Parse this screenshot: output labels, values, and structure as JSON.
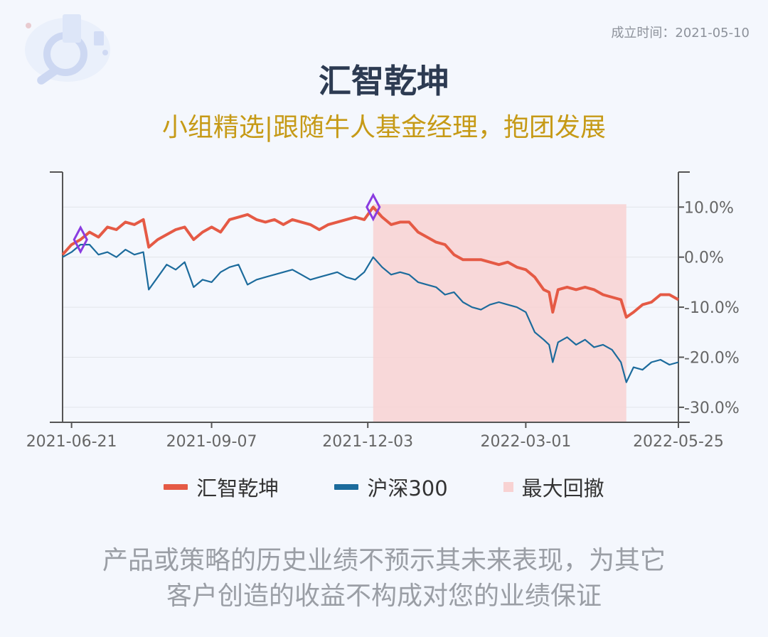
{
  "header": {
    "established_label": "成立时间：2021-05-10",
    "title": "汇智乾坤",
    "subtitle": "小组精选|跟随牛人基金经理，抱团发展"
  },
  "legend": {
    "items": [
      {
        "label": "汇智乾坤",
        "color": "#e55a45",
        "kind": "line"
      },
      {
        "label": "沪深300",
        "color": "#1c6b9c",
        "kind": "line"
      },
      {
        "label": "最大回撤",
        "color": "#f8d2d2",
        "kind": "box"
      }
    ]
  },
  "disclaimer": {
    "line1": "产品或策略的历史业绩不预示其未来表现，为其它",
    "line2": "客户创造的收益不构成对您的业绩保证"
  },
  "chart_data": {
    "type": "line",
    "title": "",
    "x_ticks": [
      "2021-06-21",
      "2021-09-07",
      "2021-12-03",
      "2022-03-01",
      "2022-05-25"
    ],
    "y_ticks": [
      "10.0%",
      "0.0%",
      "-10.0%",
      "-20.0%",
      "-30.0%"
    ],
    "y_tick_values": [
      10,
      0,
      -10,
      -20,
      -30
    ],
    "ylim": [
      -33,
      17
    ],
    "xlim": [
      "2021-06-16",
      "2022-05-25"
    ],
    "y_axis_side": "right",
    "grid": true,
    "series": [
      {
        "name": "汇智乾坤",
        "color": "#e55a45",
        "points": [
          [
            "2021-06-16",
            0.5
          ],
          [
            "2021-06-21",
            2.5
          ],
          [
            "2021-06-26",
            3.5
          ],
          [
            "2021-07-01",
            5.0
          ],
          [
            "2021-07-06",
            4.0
          ],
          [
            "2021-07-11",
            6.0
          ],
          [
            "2021-07-16",
            5.5
          ],
          [
            "2021-07-21",
            7.0
          ],
          [
            "2021-07-26",
            6.5
          ],
          [
            "2021-07-31",
            7.5
          ],
          [
            "2021-08-03",
            2.0
          ],
          [
            "2021-08-08",
            3.5
          ],
          [
            "2021-08-13",
            4.5
          ],
          [
            "2021-08-18",
            5.5
          ],
          [
            "2021-08-23",
            6.0
          ],
          [
            "2021-08-28",
            3.5
          ],
          [
            "2021-09-02",
            5.0
          ],
          [
            "2021-09-07",
            6.0
          ],
          [
            "2021-09-12",
            5.0
          ],
          [
            "2021-09-17",
            7.5
          ],
          [
            "2021-09-22",
            8.0
          ],
          [
            "2021-09-27",
            8.5
          ],
          [
            "2021-10-02",
            7.5
          ],
          [
            "2021-10-07",
            7.0
          ],
          [
            "2021-10-12",
            7.5
          ],
          [
            "2021-10-17",
            6.5
          ],
          [
            "2021-10-22",
            7.5
          ],
          [
            "2021-10-27",
            7.0
          ],
          [
            "2021-11-01",
            6.5
          ],
          [
            "2021-11-06",
            5.5
          ],
          [
            "2021-11-11",
            6.5
          ],
          [
            "2021-11-16",
            7.0
          ],
          [
            "2021-11-21",
            7.5
          ],
          [
            "2021-11-26",
            8.0
          ],
          [
            "2021-12-01",
            7.5
          ],
          [
            "2021-12-06",
            10.0
          ],
          [
            "2021-12-11",
            8.0
          ],
          [
            "2021-12-16",
            6.5
          ],
          [
            "2021-12-21",
            7.0
          ],
          [
            "2021-12-26",
            7.0
          ],
          [
            "2021-12-31",
            5.0
          ],
          [
            "2022-01-05",
            4.0
          ],
          [
            "2022-01-10",
            3.0
          ],
          [
            "2022-01-15",
            2.5
          ],
          [
            "2022-01-20",
            0.5
          ],
          [
            "2022-01-25",
            -0.5
          ],
          [
            "2022-01-30",
            -0.5
          ],
          [
            "2022-02-04",
            -0.5
          ],
          [
            "2022-02-09",
            -1.0
          ],
          [
            "2022-02-14",
            -1.5
          ],
          [
            "2022-02-19",
            -1.0
          ],
          [
            "2022-02-24",
            -2.0
          ],
          [
            "2022-03-01",
            -2.5
          ],
          [
            "2022-03-06",
            -4.0
          ],
          [
            "2022-03-11",
            -6.5
          ],
          [
            "2022-03-14",
            -7.0
          ],
          [
            "2022-03-16",
            -11.0
          ],
          [
            "2022-03-19",
            -6.5
          ],
          [
            "2022-03-24",
            -6.0
          ],
          [
            "2022-03-29",
            -6.5
          ],
          [
            "2022-04-03",
            -6.0
          ],
          [
            "2022-04-08",
            -6.5
          ],
          [
            "2022-04-13",
            -7.5
          ],
          [
            "2022-04-18",
            -8.0
          ],
          [
            "2022-04-23",
            -8.5
          ],
          [
            "2022-04-26",
            -12.0
          ],
          [
            "2022-04-30",
            -11.0
          ],
          [
            "2022-05-05",
            -9.5
          ],
          [
            "2022-05-10",
            -9.0
          ],
          [
            "2022-05-15",
            -7.5
          ],
          [
            "2022-05-20",
            -7.5
          ],
          [
            "2022-05-25",
            -8.5
          ]
        ]
      },
      {
        "name": "沪深300",
        "color": "#1c6b9c",
        "points": [
          [
            "2021-06-16",
            0.0
          ],
          [
            "2021-06-21",
            1.0
          ],
          [
            "2021-06-26",
            2.5
          ],
          [
            "2021-07-01",
            2.5
          ],
          [
            "2021-07-06",
            0.5
          ],
          [
            "2021-07-11",
            1.0
          ],
          [
            "2021-07-16",
            0.0
          ],
          [
            "2021-07-21",
            1.5
          ],
          [
            "2021-07-26",
            0.5
          ],
          [
            "2021-07-31",
            1.0
          ],
          [
            "2021-08-03",
            -6.5
          ],
          [
            "2021-08-08",
            -4.0
          ],
          [
            "2021-08-13",
            -1.5
          ],
          [
            "2021-08-18",
            -2.5
          ],
          [
            "2021-08-23",
            -1.0
          ],
          [
            "2021-08-28",
            -6.0
          ],
          [
            "2021-09-02",
            -4.5
          ],
          [
            "2021-09-07",
            -5.0
          ],
          [
            "2021-09-12",
            -3.0
          ],
          [
            "2021-09-17",
            -2.0
          ],
          [
            "2021-09-22",
            -1.5
          ],
          [
            "2021-09-27",
            -5.5
          ],
          [
            "2021-10-02",
            -4.5
          ],
          [
            "2021-10-07",
            -4.0
          ],
          [
            "2021-10-12",
            -3.5
          ],
          [
            "2021-10-17",
            -3.0
          ],
          [
            "2021-10-22",
            -2.5
          ],
          [
            "2021-10-27",
            -3.5
          ],
          [
            "2021-11-01",
            -4.5
          ],
          [
            "2021-11-06",
            -4.0
          ],
          [
            "2021-11-11",
            -3.5
          ],
          [
            "2021-11-16",
            -3.0
          ],
          [
            "2021-11-21",
            -4.0
          ],
          [
            "2021-11-26",
            -4.5
          ],
          [
            "2021-12-01",
            -3.0
          ],
          [
            "2021-12-06",
            0.0
          ],
          [
            "2021-12-11",
            -2.0
          ],
          [
            "2021-12-16",
            -3.5
          ],
          [
            "2021-12-21",
            -3.0
          ],
          [
            "2021-12-26",
            -3.5
          ],
          [
            "2021-12-31",
            -5.0
          ],
          [
            "2022-01-05",
            -5.5
          ],
          [
            "2022-01-10",
            -6.0
          ],
          [
            "2022-01-15",
            -7.5
          ],
          [
            "2022-01-20",
            -7.0
          ],
          [
            "2022-01-25",
            -9.0
          ],
          [
            "2022-01-30",
            -10.0
          ],
          [
            "2022-02-04",
            -10.5
          ],
          [
            "2022-02-09",
            -9.5
          ],
          [
            "2022-02-14",
            -9.0
          ],
          [
            "2022-02-19",
            -9.5
          ],
          [
            "2022-02-24",
            -10.0
          ],
          [
            "2022-03-01",
            -11.0
          ],
          [
            "2022-03-06",
            -15.0
          ],
          [
            "2022-03-11",
            -16.5
          ],
          [
            "2022-03-14",
            -17.5
          ],
          [
            "2022-03-16",
            -21.0
          ],
          [
            "2022-03-19",
            -17.0
          ],
          [
            "2022-03-24",
            -16.0
          ],
          [
            "2022-03-29",
            -17.5
          ],
          [
            "2022-04-03",
            -16.5
          ],
          [
            "2022-04-08",
            -18.0
          ],
          [
            "2022-04-13",
            -17.5
          ],
          [
            "2022-04-18",
            -18.5
          ],
          [
            "2022-04-23",
            -21.0
          ],
          [
            "2022-04-26",
            -25.0
          ],
          [
            "2022-04-30",
            -22.0
          ],
          [
            "2022-05-05",
            -22.5
          ],
          [
            "2022-05-10",
            -21.0
          ],
          [
            "2022-05-15",
            -20.5
          ],
          [
            "2022-05-20",
            -21.5
          ],
          [
            "2022-05-25",
            -21.0
          ]
        ]
      }
    ],
    "max_drawdown": {
      "label": "最大回撤",
      "start": "2021-12-06",
      "end": "2022-04-26",
      "color": "#f8d2d2"
    },
    "markers": [
      {
        "date": "2021-06-26",
        "value": 3.5,
        "shape": "diamond",
        "color": "#8a3ce0"
      },
      {
        "date": "2021-12-06",
        "value": 10.0,
        "shape": "diamond",
        "color": "#8a3ce0"
      }
    ]
  }
}
